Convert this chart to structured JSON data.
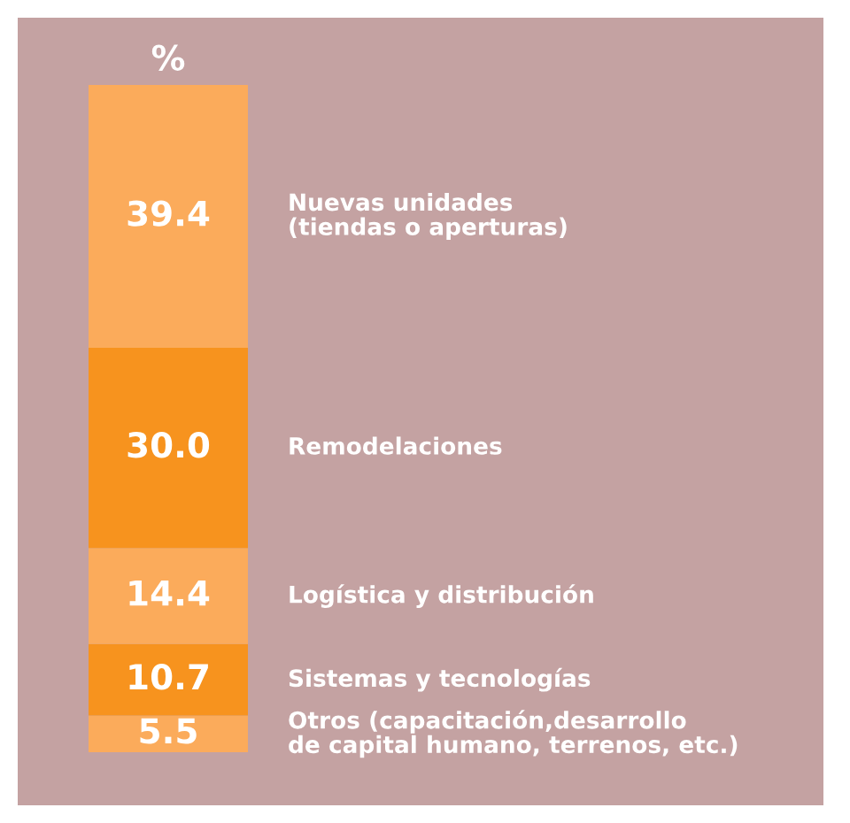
{
  "chart_data": {
    "type": "bar",
    "title": "%",
    "categories": [
      null
    ],
    "stacked": true,
    "data_labels": true,
    "series": [
      {
        "name": "Otros (capacitación,desarrollo\nde capital humano, terrenos, etc.)",
        "color": "#fbab5b",
        "values": [
          5.5
        ],
        "value_labels": [
          "5.5"
        ]
      },
      {
        "name": "Sistemas y tecnologías",
        "color": "#f7931e",
        "values": [
          10.7
        ],
        "value_labels": [
          "10.7"
        ]
      },
      {
        "name": "Logística y distribución",
        "color": "#fbab5b",
        "values": [
          14.4
        ],
        "value_labels": [
          "14.4"
        ]
      },
      {
        "name": "Remodelaciones",
        "color": "#f7931e",
        "values": [
          30.0
        ],
        "value_labels": [
          "30.0"
        ]
      },
      {
        "name": "Nuevas unidades\n(tiendas o aperturas)",
        "color": "#fbab5b",
        "values": [
          39.4
        ],
        "value_labels": [
          "39.4"
        ]
      }
    ]
  }
}
